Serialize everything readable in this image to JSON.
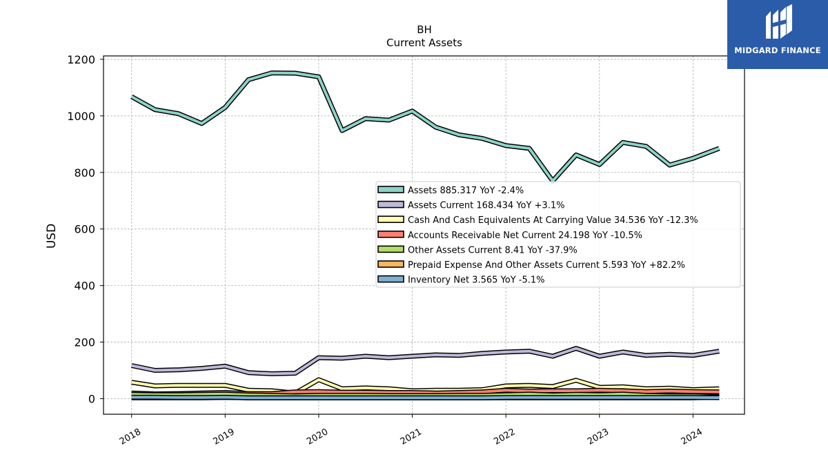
{
  "chart_data": {
    "type": "line",
    "title": "BH",
    "subtitle": "Current  Assets",
    "ylabel": "USD",
    "xlabel": "",
    "ylim": [
      -55,
      1212
    ],
    "xlim": [
      2017.7,
      2024.55
    ],
    "yticks": [
      0,
      200,
      400,
      600,
      800,
      1000,
      1200
    ],
    "xticks": [
      2018,
      2019,
      2020,
      2021,
      2022,
      2023,
      2024
    ],
    "grid": true,
    "legend_position": "center-right",
    "x": [
      2018.0,
      2018.25,
      2018.5,
      2018.75,
      2019.0,
      2019.25,
      2019.5,
      2019.75,
      2020.0,
      2020.25,
      2020.5,
      2020.75,
      2021.0,
      2021.25,
      2021.5,
      2021.75,
      2022.0,
      2022.25,
      2022.5,
      2022.75,
      2023.0,
      2023.25,
      2023.5,
      2023.75,
      2024.0,
      2024.28
    ],
    "series": [
      {
        "name": "Assets",
        "legend": "Assets  885.317 YoY -2.4%",
        "color": "#8dd3c7",
        "values": [
          1068,
          1022,
          1008,
          973,
          1030,
          1128,
          1152,
          1151,
          1138,
          948,
          990,
          985,
          1017,
          960,
          933,
          920,
          895,
          885,
          770,
          862,
          828,
          906,
          892,
          826,
          850,
          885
        ]
      },
      {
        "name": "Assets Current",
        "legend": "Assets Current  168.434 YoY +3.1%",
        "color": "#bebada",
        "values": [
          117,
          100,
          102,
          107,
          115,
          92,
          88,
          90,
          145,
          143,
          150,
          145,
          150,
          155,
          153,
          160,
          165,
          168,
          150,
          178,
          150,
          165,
          153,
          157,
          153,
          168
        ]
      },
      {
        "name": "Cash And Cash Equivalents At Carrying Value",
        "legend": "Cash And Cash Equivalents At Carrying Value  34.536 YoY -12.3%",
        "color": "#ffffb3",
        "values": [
          58,
          45,
          47,
          47,
          47,
          30,
          28,
          20,
          67,
          35,
          38,
          35,
          28,
          30,
          30,
          32,
          45,
          47,
          43,
          65,
          40,
          42,
          35,
          37,
          32,
          35
        ]
      },
      {
        "name": "Accounts Receivable Net Current",
        "legend": "Accounts Receivable Net Current  24.198 YoY -10.5%",
        "color": "#fb8072",
        "values": [
          20,
          17,
          18,
          20,
          22,
          18,
          18,
          24,
          25,
          23,
          23,
          22,
          22,
          20,
          22,
          24,
          30,
          27,
          28,
          28,
          30,
          28,
          25,
          27,
          25,
          24
        ]
      },
      {
        "name": "Other Assets Current",
        "legend": "Other Assets Current  8.41 YoY -37.9%",
        "color": "#b3de69",
        "values": [
          15,
          14,
          14,
          15,
          16,
          13,
          12,
          10,
          12,
          12,
          12,
          11,
          11,
          11,
          12,
          12,
          14,
          16,
          13,
          15,
          14,
          16,
          12,
          10,
          10,
          8
        ]
      },
      {
        "name": "Prepaid Expense And Other Assets Current",
        "legend": "Prepaid Expense And Other Assets Current  5.593 YoY +82.2%",
        "color": "#fdb462",
        "values": [
          3,
          3,
          3,
          3,
          4,
          3,
          3,
          3,
          3,
          3,
          3,
          3,
          3,
          3,
          3,
          3,
          3,
          3,
          3,
          3,
          3,
          3,
          3,
          3,
          3,
          5.6
        ]
      },
      {
        "name": "Inventory Net",
        "legend": "Inventory Net  3.565 YoY -5.1%",
        "color": "#80b1d3",
        "values": [
          5,
          5,
          4,
          4,
          5,
          3,
          3,
          3,
          3,
          3,
          3,
          3,
          3,
          3,
          3,
          3,
          4,
          4,
          4,
          4,
          4,
          4,
          4,
          4,
          4,
          3.6
        ]
      }
    ]
  },
  "logo": {
    "text": "MIDGARD FINANCE",
    "color": "#2a5caa"
  }
}
